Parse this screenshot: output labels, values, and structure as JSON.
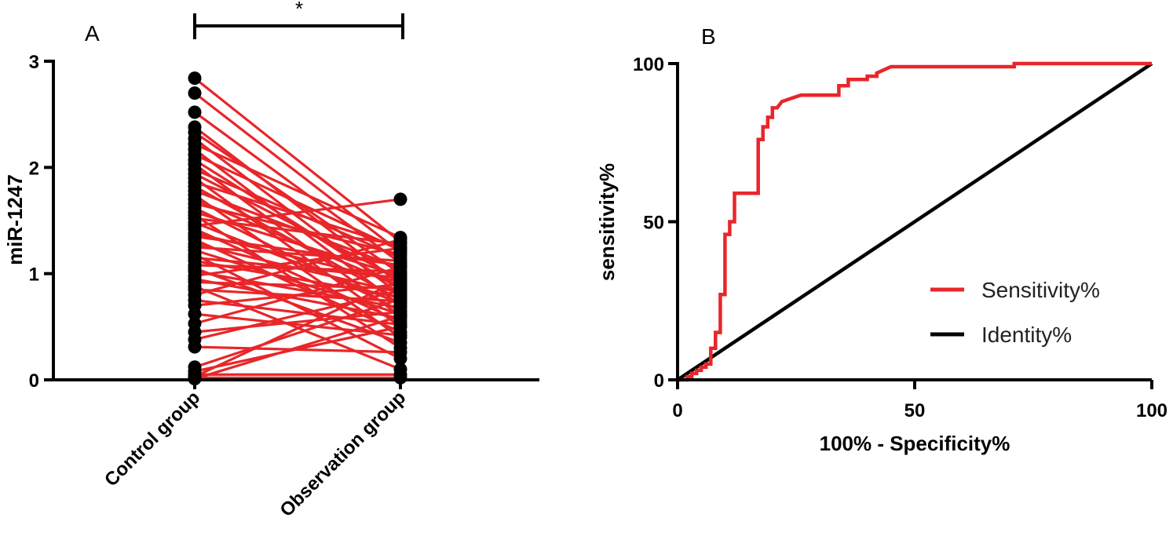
{
  "chart_data": [
    {
      "panel": "A",
      "type": "scatter",
      "subtype": "paired-lines",
      "ylabel": "miR-1247",
      "xlabel": "",
      "categories": [
        "Control group",
        "Observation group"
      ],
      "ylim": [
        0,
        3
      ],
      "yticks": [
        0,
        1,
        2,
        3
      ],
      "significance": "*",
      "colors": {
        "points": "#000000",
        "lines": "#e8262a"
      },
      "pairs": [
        [
          2.84,
          1.3
        ],
        [
          2.7,
          1.2
        ],
        [
          2.52,
          1.1
        ],
        [
          2.38,
          0.9
        ],
        [
          2.33,
          1.0
        ],
        [
          2.27,
          0.8
        ],
        [
          2.22,
          1.34
        ],
        [
          2.17,
          0.7
        ],
        [
          2.12,
          1.22
        ],
        [
          2.07,
          0.85
        ],
        [
          2.03,
          0.6
        ],
        [
          1.98,
          1.15
        ],
        [
          1.94,
          0.95
        ],
        [
          1.9,
          0.5
        ],
        [
          1.86,
          1.25
        ],
        [
          1.82,
          0.75
        ],
        [
          1.78,
          1.05
        ],
        [
          1.74,
          0.4
        ],
        [
          1.7,
          0.88
        ],
        [
          1.66,
          1.18
        ],
        [
          1.62,
          0.65
        ],
        [
          1.58,
          0.98
        ],
        [
          1.55,
          0.3
        ],
        [
          1.52,
          1.28
        ],
        [
          1.48,
          0.72
        ],
        [
          1.45,
          1.7
        ],
        [
          1.42,
          0.55
        ],
        [
          1.38,
          0.92
        ],
        [
          1.35,
          1.08
        ],
        [
          1.32,
          0.45
        ],
        [
          1.28,
          0.82
        ],
        [
          1.25,
          1.12
        ],
        [
          1.22,
          0.62
        ],
        [
          1.18,
          0.2
        ],
        [
          1.15,
          0.96
        ],
        [
          1.12,
          0.78
        ],
        [
          1.08,
          1.02
        ],
        [
          1.05,
          0.35
        ],
        [
          1.02,
          0.68
        ],
        [
          0.98,
          1.24
        ],
        [
          0.95,
          0.58
        ],
        [
          0.92,
          0.86
        ],
        [
          0.88,
          0.1
        ],
        [
          0.85,
          0.74
        ],
        [
          0.8,
          1.32
        ],
        [
          0.75,
          0.52
        ],
        [
          0.7,
          0.9
        ],
        [
          0.62,
          0.42
        ],
        [
          0.53,
          1.06
        ],
        [
          0.45,
          0.64
        ],
        [
          0.38,
          0.84
        ],
        [
          0.31,
          0.26
        ],
        [
          0.12,
          0.76
        ],
        [
          0.08,
          0.5
        ],
        [
          0.05,
          0.05
        ],
        [
          0.03,
          0.94
        ],
        [
          0.02,
          0.02
        ],
        [
          0.01,
          0.6
        ]
      ]
    },
    {
      "panel": "B",
      "type": "line",
      "title": "",
      "xlabel": "100% - Specificity%",
      "ylabel": "sensitivity%",
      "xlim": [
        0,
        100
      ],
      "ylim": [
        0,
        100
      ],
      "xticks": [
        0,
        50,
        100
      ],
      "yticks": [
        0,
        50,
        100
      ],
      "legend_position": "center-right",
      "series": [
        {
          "name": "Sensitivity%",
          "color": "#e8262a",
          "x": [
            0,
            2,
            2,
            3,
            3,
            4,
            4,
            5,
            5,
            6,
            6,
            7,
            7,
            8,
            8,
            9,
            9,
            10,
            10,
            11,
            11,
            12,
            12,
            17,
            17,
            18,
            18,
            19,
            19,
            20,
            20,
            21,
            22,
            22,
            24,
            24,
            26,
            34,
            34,
            36,
            36,
            40,
            40,
            42,
            42,
            45,
            71,
            71,
            100
          ],
          "y": [
            0,
            0,
            1,
            1,
            2,
            2,
            3,
            3,
            4,
            4,
            5,
            5,
            10,
            10,
            15,
            15,
            27,
            27,
            46,
            46,
            50,
            50,
            59,
            59,
            76,
            76,
            80,
            80,
            83,
            83,
            86,
            86,
            88,
            88,
            89,
            89,
            90,
            90,
            93,
            93,
            95,
            95,
            96,
            96,
            97,
            99,
            99,
            100,
            100
          ]
        },
        {
          "name": "Identity%",
          "color": "#000000",
          "x": [
            0,
            100
          ],
          "y": [
            0,
            100
          ]
        }
      ]
    }
  ]
}
